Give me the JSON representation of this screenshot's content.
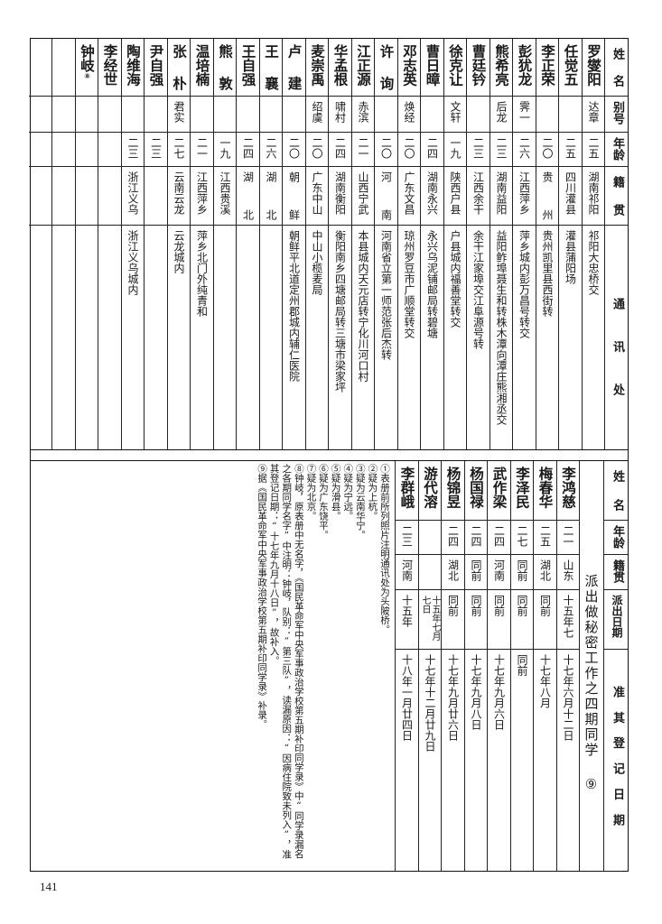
{
  "top_table": {
    "headers": {
      "name": "姓名",
      "alias": "别号",
      "age": "年龄",
      "origin": "籍贯",
      "address": "通讯处"
    },
    "rows": [
      {
        "name": "罗燮阳",
        "alias": "达章",
        "age": "二五",
        "origin": "湖南祁阳",
        "address": "祁阳大忠桥交"
      },
      {
        "name": "任觉五",
        "alias": "",
        "age": "二五",
        "origin": "四川灌县",
        "address": "灌县蒲阳场"
      },
      {
        "name": "李正荣",
        "alias": "",
        "age": "二〇",
        "origin": "贵州",
        "address": "贵州凯里县西街转"
      },
      {
        "name": "彭犹龙",
        "alias": "霁一",
        "age": "二六",
        "origin": "江西萍乡",
        "address": "萍乡城内彭万昌号转交"
      },
      {
        "name": "熊希亮",
        "alias": "后龙",
        "age": "二三",
        "origin": "湖南益阳",
        "address": "益阳鲊埠聂生和转株木潭向潭庄熊湘丞交"
      },
      {
        "name": "曹廷钤",
        "alias": "",
        "age": "二三",
        "origin": "江西余干",
        "address": "余干江家埠交江阜源号转"
      },
      {
        "name": "徐克让",
        "alias": "文轩",
        "age": "一九",
        "origin": "陕西户县",
        "address": "户县城内福善堂转交"
      },
      {
        "name": "曹日暲",
        "alias": "",
        "age": "二四",
        "origin": "湖南永兴",
        "address": "永兴乌泥铺邮局转碧塘"
      },
      {
        "name": "邓志英",
        "alias": "焕经",
        "age": "二〇",
        "origin": "广东文昌",
        "address": "琼州罗豆市广顺堂转交"
      },
      {
        "name": "许询",
        "alias": "",
        "age": "二〇",
        "origin": "河南",
        "address": "河南省立第一师范张后杰转"
      },
      {
        "name": "江正源",
        "alias": "赤滨",
        "age": "二一",
        "origin": "山西宁武",
        "address": "本县城内天元店转宁化川河口村"
      },
      {
        "name": "华孟根",
        "alias": "啸村",
        "age": "二四",
        "origin": "湖南衡阳",
        "address": "衡阳南乡四塘邮局转三塘市梁家坪"
      },
      {
        "name": "麦崇禹",
        "alias": "绍虞",
        "age": "二〇",
        "origin": "广东中山",
        "address": "中山小榄麦局"
      },
      {
        "name": "卢建",
        "alias": "",
        "age": "二〇",
        "origin": "朝鲜",
        "address": "朝鲜平北道定州郡城内辅仁医院"
      },
      {
        "name": "王襄",
        "alias": "",
        "age": "二六",
        "origin": "湖北",
        "address": ""
      },
      {
        "name": "王自强",
        "alias": "",
        "age": "二四",
        "origin": "湖北",
        "address": ""
      },
      {
        "name": "熊敦",
        "alias": "",
        "age": "一九",
        "origin": "江西贵溪",
        "address": ""
      },
      {
        "name": "温培楠",
        "alias": "",
        "age": "二一",
        "origin": "江西萍乡",
        "address": "萍乡北门外纯青和"
      },
      {
        "name": "张朴",
        "alias": "君实",
        "age": "二七",
        "origin": "云南云龙",
        "address": "云龙城内"
      },
      {
        "name": "尹自强",
        "alias": "",
        "age": "二三",
        "origin": "",
        "address": ""
      },
      {
        "name": "陶维海",
        "alias": "",
        "age": "二三",
        "origin": "浙江义乌",
        "address": "浙江义乌城内"
      },
      {
        "name": "李经世",
        "alias": "",
        "age": "",
        "origin": "",
        "address": ""
      },
      {
        "name": "钟岐",
        "note_mark": "⑧",
        "alias": "",
        "age": "",
        "origin": "",
        "address": ""
      },
      {
        "name": "",
        "alias": "",
        "age": "",
        "origin": "",
        "address": ""
      },
      {
        "name": "",
        "alias": "",
        "age": "",
        "origin": "",
        "address": ""
      }
    ]
  },
  "bottom_table": {
    "headers": {
      "name": "姓名",
      "age": "年龄",
      "origin": "籍贯",
      "dispatch": "派出日期",
      "register": "准其登记日期"
    },
    "section_label": "派出做秘密工作之四期同学",
    "section_note_mark": "⑨",
    "rows": [
      {
        "name": "李鸿慈",
        "age": "二一",
        "origin": "山东",
        "dispatch": "十五年七月",
        "register": "十七年六月十二日"
      },
      {
        "name": "梅春华",
        "age": "二五",
        "origin": "湖北",
        "dispatch": "同前",
        "register": "十七年八月"
      },
      {
        "name": "李泽民",
        "age": "二七",
        "origin": "同前",
        "dispatch": "同前",
        "register": "同前"
      },
      {
        "name": "武作梁",
        "age": "二四",
        "origin": "河南",
        "dispatch": "同前",
        "register": "十七年九月六日"
      },
      {
        "name": "杨国禄",
        "age": "二四",
        "origin": "同前",
        "dispatch": "同前",
        "register": "十七年九月八日"
      },
      {
        "name": "杨锦昱",
        "age": "二四",
        "origin": "湖北",
        "dispatch": "同前",
        "register": "十七年九月廿六日"
      },
      {
        "name": "游代溶",
        "age": "",
        "origin": "",
        "dispatch": "十五年七月七日",
        "register": "十七年十二月廿九日"
      },
      {
        "name": "李群峨",
        "age": "二三",
        "origin": "河南",
        "dispatch": "十五年",
        "register": "十八年一月廿四日"
      }
    ]
  },
  "footnotes": [
    "①表册前所列照片注明通讯处为头陂桥。",
    "②疑为上杭。",
    "③疑为云南华宁。",
    "④疑为宁远。",
    "⑤疑为滑县。",
    "⑥疑为广东饶平。",
    "⑦疑为北京。",
    "⑧钟岐，原表册中无名字，《国民革命军中央军事政治学校第五期补印同学录》中“同学录漏名之各期同学名字”中注明：钟岐，队别：“第三队”，读漏原因：“因病住院致未列入”，准其登记日期：“十七年九月十八日”，故补入。",
    "⑨据《国民革命军中央军事政治学校第五期补印同学录》补录。"
  ],
  "page_number": "141"
}
